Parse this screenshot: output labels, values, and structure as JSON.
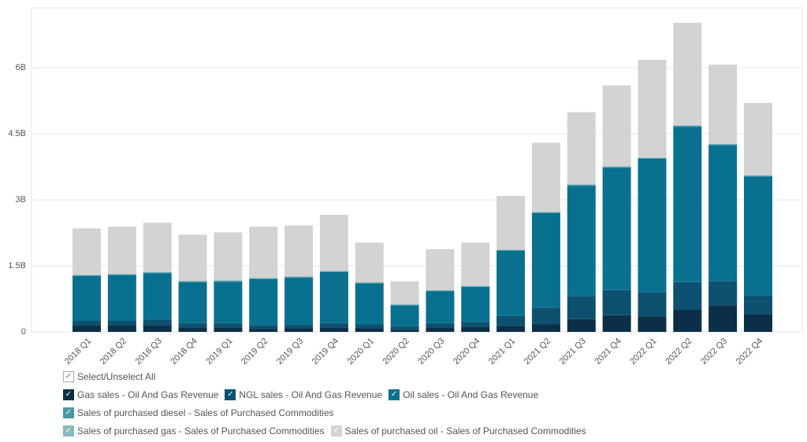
{
  "chart_data": {
    "type": "stacked_bar",
    "categories": [
      "2018 Q1",
      "2018 Q2",
      "2018 Q3",
      "2018 Q4",
      "2019 Q1",
      "2019 Q2",
      "2019 Q3",
      "2019 Q4",
      "2020 Q1",
      "2020 Q2",
      "2020 Q3",
      "2020 Q4",
      "2021 Q1",
      "2021 Q2",
      "2021 Q3",
      "2021 Q4",
      "2022 Q1",
      "2022 Q2",
      "2022 Q3",
      "2022 Q4"
    ],
    "series": [
      {
        "name": "Gas sales - Oil And Gas Revenue",
        "color": "#0b2f47",
        "values": [
          0.15,
          0.15,
          0.15,
          0.1,
          0.1,
          0.07,
          0.08,
          0.1,
          0.08,
          0.05,
          0.1,
          0.12,
          0.14,
          0.17,
          0.29,
          0.38,
          0.35,
          0.5,
          0.6,
          0.4
        ]
      },
      {
        "name": "NGL sales - Oil And Gas Revenue",
        "color": "#0d5070",
        "values": [
          0.1,
          0.1,
          0.13,
          0.1,
          0.1,
          0.08,
          0.08,
          0.1,
          0.09,
          0.08,
          0.1,
          0.11,
          0.23,
          0.38,
          0.52,
          0.57,
          0.55,
          0.63,
          0.55,
          0.42
        ]
      },
      {
        "name": "Oil sales - Oil And Gas Revenue",
        "color": "#0a7090",
        "values": [
          1.02,
          1.04,
          1.05,
          0.93,
          0.94,
          1.05,
          1.07,
          1.16,
          0.93,
          0.47,
          0.72,
          0.79,
          1.47,
          2.15,
          2.51,
          2.78,
          3.03,
          3.53,
          3.09,
          2.71
        ]
      },
      {
        "name": "Sales of purchased diesel - Sales of Purchased Commodities",
        "color": "#4a9aa5",
        "values": [
          0.02,
          0.02,
          0.02,
          0.02,
          0.02,
          0.02,
          0.02,
          0.02,
          0.02,
          0.02,
          0.02,
          0.02,
          0.02,
          0.02,
          0.02,
          0.02,
          0.02,
          0.02,
          0.02,
          0.02
        ]
      },
      {
        "name": "Sales of purchased gas - Sales of Purchased Commodities",
        "color": "#8ab8c0",
        "values": [
          0.01,
          0.01,
          0.01,
          0.01,
          0.01,
          0.01,
          0.01,
          0.01,
          0.01,
          0.01,
          0.01,
          0.01,
          0.01,
          0.01,
          0.01,
          0.01,
          0.01,
          0.01,
          0.01,
          0.01
        ]
      },
      {
        "name": "Sales of purchased oil - Sales of Purchased Commodities",
        "color": "#d3d3d3",
        "values": [
          1.05,
          1.07,
          1.12,
          1.05,
          1.09,
          1.16,
          1.16,
          1.27,
          0.9,
          0.52,
          0.93,
          0.98,
          1.22,
          1.57,
          1.64,
          1.84,
          2.22,
          2.33,
          1.8,
          1.64
        ]
      }
    ],
    "ylim": [
      0,
      7.36
    ],
    "yticks": [
      0,
      {
        "value": 1.5,
        "label": "1.5B"
      },
      {
        "value": 3,
        "label": "3B"
      },
      {
        "value": 4.5,
        "label": "4.5B"
      },
      {
        "value": 6,
        "label": "6B"
      }
    ],
    "grid": true,
    "select_all_label": "Select/Unselect All"
  }
}
